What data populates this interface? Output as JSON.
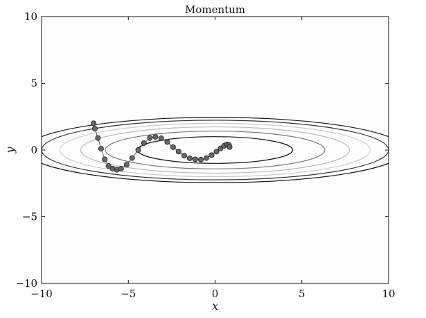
{
  "chart_data": {
    "type": "line",
    "title": "Momentum",
    "xlabel": "x",
    "ylabel": "y",
    "xlim": [
      -10,
      10
    ],
    "ylim": [
      -10,
      10
    ],
    "xticks": [
      -10,
      -5,
      0,
      5,
      10
    ],
    "yticks": [
      -10,
      -5,
      0,
      5,
      10
    ],
    "xtick_labels": [
      "−10",
      "−5",
      "0",
      "5",
      "10"
    ],
    "ytick_labels": [
      "−10",
      "−5",
      "0",
      "5",
      "10"
    ],
    "grid": false,
    "contours": {
      "function": "f(x, y) = x^2 / 20 + y^2",
      "levels": [
        1,
        2,
        3,
        4,
        5,
        6
      ],
      "colors": [
        "#111111",
        "#777777",
        "#bbbbbb",
        "#cccccc",
        "#333333",
        "#111111"
      ]
    },
    "series": [
      {
        "x": [
          -7.0,
          -6.93,
          -6.75,
          -6.57,
          -6.36,
          -6.14,
          -5.9,
          -5.66,
          -5.42,
          -5.1,
          -4.78,
          -4.43,
          -4.1,
          -3.76,
          -3.44,
          -3.1,
          -2.76,
          -2.42,
          -2.1,
          -1.78,
          -1.46,
          -1.14,
          -0.82,
          -0.5,
          -0.2,
          0.08,
          0.32,
          0.52,
          0.68,
          0.8,
          0.84
        ],
        "y": [
          2.0,
          1.6,
          0.9,
          0.1,
          -0.7,
          -1.2,
          -1.4,
          -1.48,
          -1.4,
          -1.1,
          -0.6,
          0.0,
          0.52,
          0.9,
          0.98,
          0.88,
          0.6,
          0.22,
          -0.12,
          -0.42,
          -0.62,
          -0.7,
          -0.72,
          -0.6,
          -0.38,
          -0.12,
          0.12,
          0.32,
          0.42,
          0.38,
          0.22
        ],
        "color": "#666666",
        "marker": "circle"
      }
    ]
  }
}
